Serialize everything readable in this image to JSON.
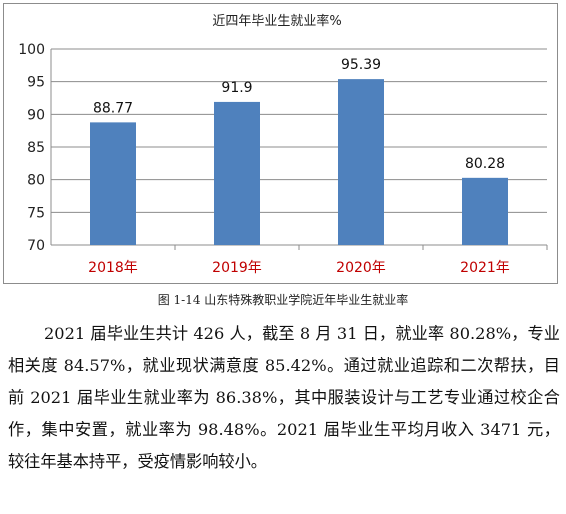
{
  "chart_data": {
    "type": "bar",
    "title": "近四年毕业生就业率%",
    "categories": [
      "2018年",
      "2019年",
      "2020年",
      "2021年"
    ],
    "values": [
      88.77,
      91.9,
      95.39,
      80.28
    ],
    "value_labels": [
      "88.77",
      "91.9",
      "95.39",
      "80.28"
    ],
    "yticks": [
      "70",
      "75",
      "80",
      "85",
      "90",
      "95",
      "100"
    ],
    "ylim": [
      70,
      100
    ],
    "grid": true,
    "legend": "none",
    "bar_color": "#4f81bd",
    "category_label_color": "#c00000"
  },
  "caption": "图 1-14  山东特殊教职业学院近年毕业生就业率",
  "paragraph": "2021 届毕业生共计 426 人，截至 8 月 31 日，就业率 80.28%，专业相关度 84.57%，就业现状满意度 85.42%。通过就业追踪和二次帮扶，目前 2021 届毕业生就业率为 86.38%，其中服装设计与工艺专业通过校企合作，集中安置，就业率为 98.48%。2021 届毕业生平均月收入 3471 元，较往年基本持平，受疫情影响较小。"
}
